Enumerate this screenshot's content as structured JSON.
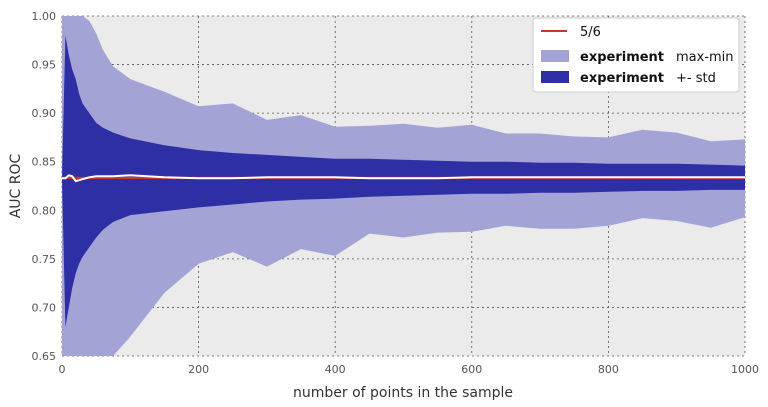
{
  "chart_data": {
    "type": "area",
    "xlabel": "number of points in the sample",
    "ylabel": "AUC ROC",
    "xlim": [
      0,
      1000
    ],
    "ylim": [
      0.65,
      1.0
    ],
    "x_ticks": [
      "0",
      "200",
      "400",
      "600",
      "800",
      "1000"
    ],
    "y_ticks": [
      "0.65",
      "0.70",
      "0.75",
      "0.80",
      "0.85",
      "0.90",
      "0.95",
      "1.00"
    ],
    "grid": true,
    "legend_position": "top-right",
    "legend": [
      {
        "series": "ref",
        "label": "5/6",
        "extra": ""
      },
      {
        "series": "maxmin",
        "label": "experiment",
        "extra": "max-min"
      },
      {
        "series": "std",
        "label": "experiment",
        "extra": "+- std"
      }
    ],
    "colors": {
      "ref": "#c0392b",
      "maxmin": "#a3a3d5",
      "std": "#2e2ea5",
      "mean": "#ffffff",
      "background": "#ebebeb",
      "grid": "#555555"
    },
    "x": [
      0,
      5,
      10,
      15,
      20,
      25,
      30,
      40,
      50,
      60,
      75,
      100,
      150,
      200,
      250,
      300,
      350,
      400,
      450,
      500,
      550,
      600,
      650,
      700,
      750,
      800,
      850,
      900,
      950,
      1000
    ],
    "series": [
      {
        "id": "maxmin",
        "upper": [
          1.0,
          1.0,
          1.0,
          1.0,
          1.0,
          1.0,
          1.0,
          0.995,
          0.982,
          0.965,
          0.948,
          0.935,
          0.922,
          0.907,
          0.91,
          0.893,
          0.898,
          0.886,
          0.887,
          0.889,
          0.885,
          0.888,
          0.879,
          0.879,
          0.876,
          0.875,
          0.883,
          0.88,
          0.871,
          0.873
        ],
        "lower": [
          0.65,
          0.65,
          0.65,
          0.65,
          0.65,
          0.65,
          0.65,
          0.65,
          0.65,
          0.65,
          0.65,
          0.67,
          0.715,
          0.745,
          0.757,
          0.742,
          0.76,
          0.753,
          0.776,
          0.772,
          0.777,
          0.778,
          0.784,
          0.781,
          0.781,
          0.784,
          0.792,
          0.789,
          0.782,
          0.793
        ]
      },
      {
        "id": "std",
        "upper": [
          0.833,
          0.98,
          0.96,
          0.945,
          0.935,
          0.92,
          0.91,
          0.9,
          0.89,
          0.885,
          0.88,
          0.874,
          0.867,
          0.862,
          0.859,
          0.857,
          0.855,
          0.853,
          0.853,
          0.852,
          0.851,
          0.85,
          0.85,
          0.849,
          0.849,
          0.848,
          0.848,
          0.848,
          0.847,
          0.846
        ],
        "lower": [
          0.833,
          0.68,
          0.7,
          0.72,
          0.735,
          0.745,
          0.752,
          0.762,
          0.772,
          0.78,
          0.788,
          0.795,
          0.799,
          0.803,
          0.806,
          0.809,
          0.811,
          0.812,
          0.814,
          0.815,
          0.816,
          0.817,
          0.817,
          0.818,
          0.818,
          0.819,
          0.82,
          0.82,
          0.821,
          0.821
        ]
      },
      {
        "id": "mean",
        "values": [
          0.833,
          0.833,
          0.836,
          0.835,
          0.83,
          0.831,
          0.832,
          0.834,
          0.835,
          0.835,
          0.835,
          0.836,
          0.834,
          0.833,
          0.833,
          0.834,
          0.834,
          0.834,
          0.833,
          0.833,
          0.833,
          0.834,
          0.834,
          0.834,
          0.834,
          0.834,
          0.834,
          0.834,
          0.834,
          0.834
        ]
      },
      {
        "id": "ref",
        "values": [
          0.8333,
          0.8333,
          0.8333,
          0.8333,
          0.8333,
          0.8333,
          0.8333,
          0.8333,
          0.8333,
          0.8333,
          0.8333,
          0.8333,
          0.8333,
          0.8333,
          0.8333,
          0.8333,
          0.8333,
          0.8333,
          0.8333,
          0.8333,
          0.8333,
          0.8333,
          0.8333,
          0.8333,
          0.8333,
          0.8333,
          0.8333,
          0.8333,
          0.8333,
          0.8333
        ]
      }
    ]
  }
}
